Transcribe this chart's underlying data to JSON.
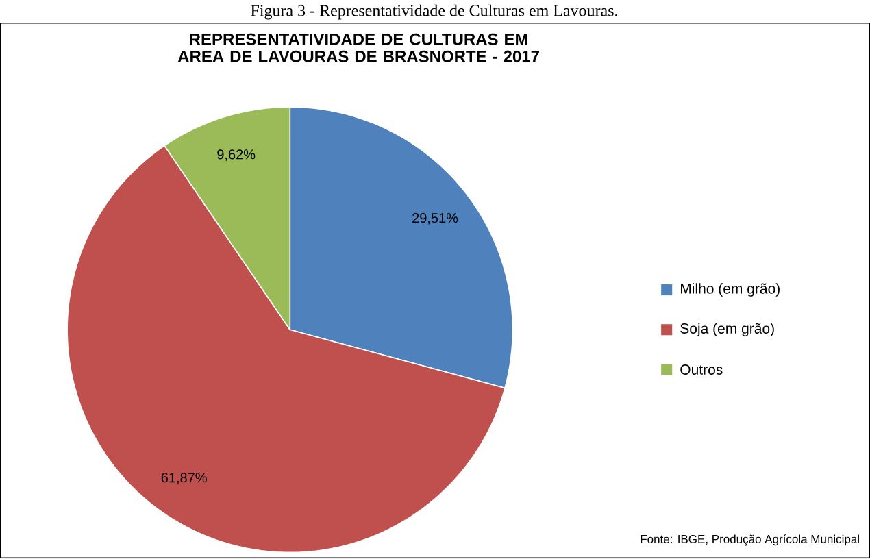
{
  "chart_data": {
    "type": "pie",
    "title": "REPRESENTATIVIDADE DE CULTURAS EM AREA DE LAVOURAS DE BRASNORTE - 2017",
    "annotations": [
      "Figura 3 - Representatividade de Culturas em Lavouras.",
      "Fonte: IBGE,  Produção Agrícola Municipal"
    ],
    "categories": [
      "Milho (em grão)",
      "Soja (em grão)",
      "Outros"
    ],
    "values": [
      29.51,
      61.87,
      9.62
    ],
    "colors": [
      "#4f81bd",
      "#c0504d",
      "#9bbb59"
    ],
    "value_labels": [
      "29,51%",
      "61,87%",
      "9,62%"
    ],
    "legend": "right"
  }
}
